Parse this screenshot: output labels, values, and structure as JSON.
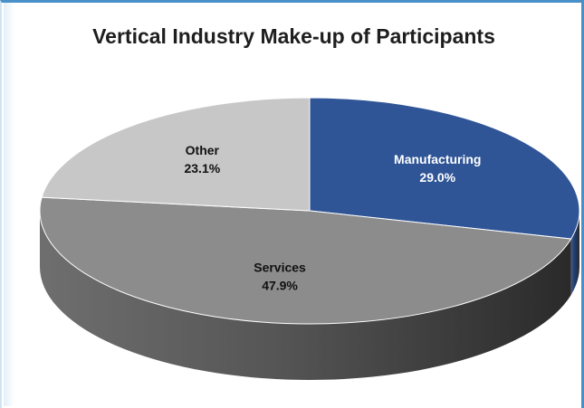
{
  "chart_data": {
    "type": "pie",
    "title": "Vertical Industry Make-up of Participants",
    "slices": [
      {
        "label": "Manufacturing",
        "value": 29.0,
        "display": "29.0%",
        "color": "#2f5597",
        "side_color": "#1f3c6e",
        "text_color": "#ffffff"
      },
      {
        "label": "Services",
        "value": 47.9,
        "display": "47.9%",
        "color": "#8c8c8c",
        "side_color": "#555555",
        "text_color": "#111111"
      },
      {
        "label": "Other",
        "value": 23.1,
        "display": "23.1%",
        "color": "#c7c7c7",
        "side_color": "#8f8f8f",
        "text_color": "#111111"
      }
    ],
    "start_angle_deg": -90,
    "direction": "clockwise",
    "three_d": true,
    "legend": "none",
    "data_labels": "inside"
  }
}
